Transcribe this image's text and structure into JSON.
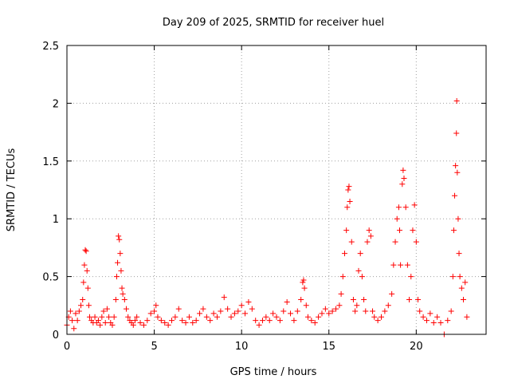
{
  "chart_data": {
    "type": "scatter",
    "title": "Day 209 of 2025, SRMTID for receiver huel",
    "xlabel": "GPS time / hours",
    "ylabel": "SRMTID / TECUs",
    "xlim": [
      0,
      24
    ],
    "ylim": [
      0,
      2.5
    ],
    "xticks": [
      0,
      5,
      10,
      15,
      20
    ],
    "xtick_labels": [
      "0",
      "5",
      "10",
      "15",
      "20"
    ],
    "yticks": [
      0,
      0.5,
      1,
      1.5,
      2,
      2.5
    ],
    "ytick_labels": [
      "0",
      "0.5",
      "1",
      "1.5",
      "2",
      "2.5"
    ],
    "grid": true,
    "marker": "+",
    "series": [
      {
        "name": "SRMTID",
        "color": "#ff0000",
        "points": [
          [
            0.0,
            0.08
          ],
          [
            0.1,
            0.15
          ],
          [
            0.2,
            0.2
          ],
          [
            0.3,
            0.12
          ],
          [
            0.4,
            0.05
          ],
          [
            0.5,
            0.18
          ],
          [
            0.6,
            0.12
          ],
          [
            0.7,
            0.2
          ],
          [
            0.8,
            0.25
          ],
          [
            0.9,
            0.3
          ],
          [
            0.95,
            0.45
          ],
          [
            1.0,
            0.6
          ],
          [
            1.05,
            0.73
          ],
          [
            1.1,
            0.72
          ],
          [
            1.15,
            0.55
          ],
          [
            1.2,
            0.4
          ],
          [
            1.25,
            0.25
          ],
          [
            1.3,
            0.15
          ],
          [
            1.4,
            0.12
          ],
          [
            1.5,
            0.1
          ],
          [
            1.6,
            0.15
          ],
          [
            1.7,
            0.1
          ],
          [
            1.8,
            0.12
          ],
          [
            1.9,
            0.08
          ],
          [
            2.0,
            0.15
          ],
          [
            2.1,
            0.2
          ],
          [
            2.2,
            0.1
          ],
          [
            2.3,
            0.22
          ],
          [
            2.4,
            0.15
          ],
          [
            2.5,
            0.1
          ],
          [
            2.6,
            0.08
          ],
          [
            2.7,
            0.15
          ],
          [
            2.8,
            0.3
          ],
          [
            2.85,
            0.5
          ],
          [
            2.9,
            0.62
          ],
          [
            2.95,
            0.85
          ],
          [
            3.0,
            0.82
          ],
          [
            3.05,
            0.7
          ],
          [
            3.1,
            0.55
          ],
          [
            3.15,
            0.4
          ],
          [
            3.2,
            0.35
          ],
          [
            3.3,
            0.3
          ],
          [
            3.4,
            0.22
          ],
          [
            3.5,
            0.15
          ],
          [
            3.6,
            0.12
          ],
          [
            3.7,
            0.1
          ],
          [
            3.8,
            0.08
          ],
          [
            3.9,
            0.12
          ],
          [
            4.0,
            0.15
          ],
          [
            4.2,
            0.1
          ],
          [
            4.4,
            0.08
          ],
          [
            4.6,
            0.12
          ],
          [
            4.8,
            0.18
          ],
          [
            5.0,
            0.2
          ],
          [
            5.1,
            0.25
          ],
          [
            5.2,
            0.15
          ],
          [
            5.4,
            0.12
          ],
          [
            5.6,
            0.1
          ],
          [
            5.8,
            0.08
          ],
          [
            6.0,
            0.12
          ],
          [
            6.2,
            0.15
          ],
          [
            6.4,
            0.22
          ],
          [
            6.6,
            0.12
          ],
          [
            6.8,
            0.1
          ],
          [
            7.0,
            0.15
          ],
          [
            7.2,
            0.1
          ],
          [
            7.4,
            0.12
          ],
          [
            7.6,
            0.18
          ],
          [
            7.8,
            0.22
          ],
          [
            8.0,
            0.15
          ],
          [
            8.2,
            0.12
          ],
          [
            8.4,
            0.18
          ],
          [
            8.6,
            0.15
          ],
          [
            8.8,
            0.2
          ],
          [
            9.0,
            0.32
          ],
          [
            9.2,
            0.22
          ],
          [
            9.4,
            0.15
          ],
          [
            9.6,
            0.18
          ],
          [
            9.8,
            0.2
          ],
          [
            10.0,
            0.25
          ],
          [
            10.2,
            0.18
          ],
          [
            10.4,
            0.28
          ],
          [
            10.6,
            0.22
          ],
          [
            10.8,
            0.12
          ],
          [
            11.0,
            0.08
          ],
          [
            11.2,
            0.12
          ],
          [
            11.4,
            0.15
          ],
          [
            11.6,
            0.12
          ],
          [
            11.8,
            0.18
          ],
          [
            12.0,
            0.15
          ],
          [
            12.2,
            0.12
          ],
          [
            12.4,
            0.2
          ],
          [
            12.6,
            0.28
          ],
          [
            12.8,
            0.18
          ],
          [
            13.0,
            0.12
          ],
          [
            13.2,
            0.2
          ],
          [
            13.4,
            0.3
          ],
          [
            13.5,
            0.45
          ],
          [
            13.55,
            0.47
          ],
          [
            13.6,
            0.4
          ],
          [
            13.7,
            0.25
          ],
          [
            13.8,
            0.15
          ],
          [
            14.0,
            0.12
          ],
          [
            14.2,
            0.1
          ],
          [
            14.4,
            0.15
          ],
          [
            14.6,
            0.18
          ],
          [
            14.8,
            0.22
          ],
          [
            15.0,
            0.18
          ],
          [
            15.2,
            0.2
          ],
          [
            15.4,
            0.22
          ],
          [
            15.6,
            0.25
          ],
          [
            15.7,
            0.35
          ],
          [
            15.8,
            0.5
          ],
          [
            15.9,
            0.7
          ],
          [
            16.0,
            0.9
          ],
          [
            16.05,
            1.1
          ],
          [
            16.1,
            1.25
          ],
          [
            16.15,
            1.28
          ],
          [
            16.2,
            1.15
          ],
          [
            16.3,
            0.8
          ],
          [
            16.4,
            0.3
          ],
          [
            16.5,
            0.2
          ],
          [
            16.6,
            0.25
          ],
          [
            16.7,
            0.55
          ],
          [
            16.8,
            0.7
          ],
          [
            16.9,
            0.5
          ],
          [
            17.0,
            0.3
          ],
          [
            17.1,
            0.2
          ],
          [
            17.2,
            0.8
          ],
          [
            17.3,
            0.9
          ],
          [
            17.4,
            0.85
          ],
          [
            17.5,
            0.2
          ],
          [
            17.6,
            0.15
          ],
          [
            17.8,
            0.12
          ],
          [
            18.0,
            0.15
          ],
          [
            18.2,
            0.2
          ],
          [
            18.4,
            0.25
          ],
          [
            18.6,
            0.35
          ],
          [
            18.7,
            0.6
          ],
          [
            18.8,
            0.8
          ],
          [
            18.9,
            1.0
          ],
          [
            19.0,
            1.1
          ],
          [
            19.05,
            0.9
          ],
          [
            19.1,
            0.6
          ],
          [
            19.2,
            1.3
          ],
          [
            19.25,
            1.42
          ],
          [
            19.3,
            1.35
          ],
          [
            19.4,
            1.1
          ],
          [
            19.5,
            0.6
          ],
          [
            19.6,
            0.3
          ],
          [
            19.7,
            0.5
          ],
          [
            19.8,
            0.9
          ],
          [
            19.9,
            1.12
          ],
          [
            20.0,
            0.8
          ],
          [
            20.1,
            0.3
          ],
          [
            20.2,
            0.2
          ],
          [
            20.4,
            0.15
          ],
          [
            20.6,
            0.12
          ],
          [
            20.8,
            0.18
          ],
          [
            21.0,
            0.1
          ],
          [
            21.2,
            0.15
          ],
          [
            21.4,
            0.1
          ],
          [
            21.6,
            0.0
          ],
          [
            21.8,
            0.12
          ],
          [
            22.0,
            0.2
          ],
          [
            22.1,
            0.5
          ],
          [
            22.15,
            0.9
          ],
          [
            22.2,
            1.2
          ],
          [
            22.25,
            1.46
          ],
          [
            22.3,
            1.74
          ],
          [
            22.32,
            2.02
          ],
          [
            22.35,
            1.4
          ],
          [
            22.4,
            1.0
          ],
          [
            22.45,
            0.7
          ],
          [
            22.5,
            0.5
          ],
          [
            22.6,
            0.4
          ],
          [
            22.7,
            0.3
          ],
          [
            22.8,
            0.45
          ],
          [
            22.9,
            0.15
          ]
        ]
      }
    ]
  }
}
